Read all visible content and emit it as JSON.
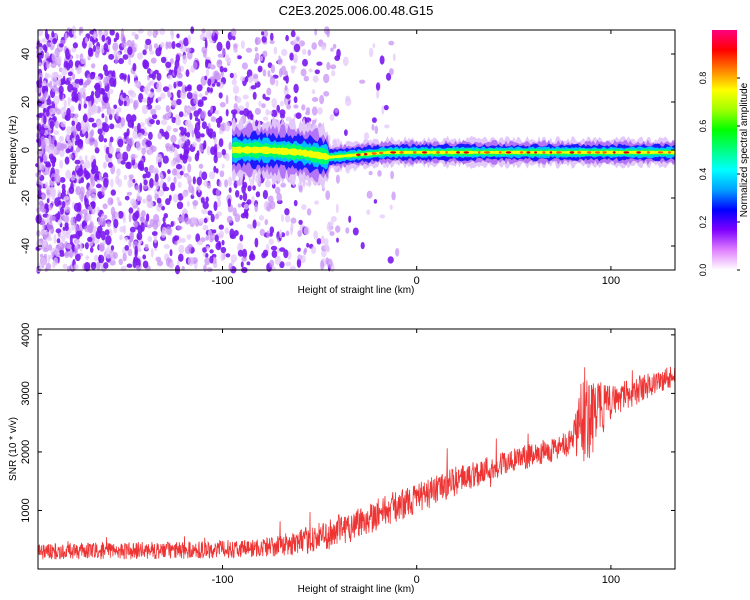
{
  "title": "C2E3.2025.006.00.48.G15",
  "chart_data": [
    {
      "type": "heatmap",
      "xlabel": "Height of straight line (km)",
      "ylabel": "Frequency (Hz)",
      "xlim": [
        -195,
        133
      ],
      "ylim": [
        -50,
        50
      ],
      "xticks": [
        -100,
        0,
        100
      ],
      "yticks": [
        -40,
        -20,
        0,
        20,
        40
      ],
      "colorbar": {
        "label": "Normalized spectral amplitude",
        "range": [
          0,
          1
        ],
        "ticks": [
          "0.0",
          "0.2",
          "0.4",
          "0.6",
          "0.8"
        ],
        "colors": [
          "#ffffff",
          "#e080ff",
          "#7f00ff",
          "#0000ff",
          "#00a0ff",
          "#00ffff",
          "#00ff80",
          "#00ff00",
          "#a0ff00",
          "#ffff00",
          "#ff8000",
          "#ff0000",
          "#ff0080"
        ]
      },
      "features": [
        {
          "name": "noise",
          "x_range": [
            -195,
            -25
          ],
          "y_range": [
            -50,
            50
          ],
          "amplitude": 0.15
        },
        {
          "name": "signal",
          "x": [
            -95,
            -80,
            -60,
            -45,
            -30,
            -15,
            0,
            20,
            50,
            80,
            100,
            133
          ],
          "y": [
            0,
            0,
            -1,
            -3,
            -2,
            -1,
            -1,
            -1,
            -1,
            -1,
            -1,
            -1
          ],
          "amplitude": [
            0.35,
            0.4,
            0.4,
            0.5,
            0.55,
            0.6,
            0.65,
            0.65,
            0.7,
            0.75,
            0.8,
            0.8
          ]
        }
      ]
    },
    {
      "type": "line",
      "xlabel": "Height of straight line (km)",
      "ylabel": "SNR (10 * v/v)",
      "xlim": [
        -195,
        133
      ],
      "ylim": [
        0,
        4100
      ],
      "xticks": [
        -100,
        0,
        100
      ],
      "yticks": [
        1000,
        2000,
        3000,
        4000
      ],
      "color": "#ee3333",
      "envelope": {
        "x": [
          -195,
          -120,
          -80,
          -60,
          -40,
          -20,
          0,
          20,
          40,
          60,
          80,
          84,
          88,
          92,
          100,
          120,
          133
        ],
        "y": [
          300,
          320,
          360,
          450,
          650,
          950,
          1200,
          1500,
          1750,
          1950,
          2150,
          2500,
          2700,
          2650,
          2850,
          3150,
          3300
        ],
        "noise": [
          140,
          150,
          160,
          220,
          280,
          280,
          260,
          250,
          230,
          200,
          220,
          700,
          900,
          600,
          280,
          220,
          200
        ]
      }
    }
  ]
}
